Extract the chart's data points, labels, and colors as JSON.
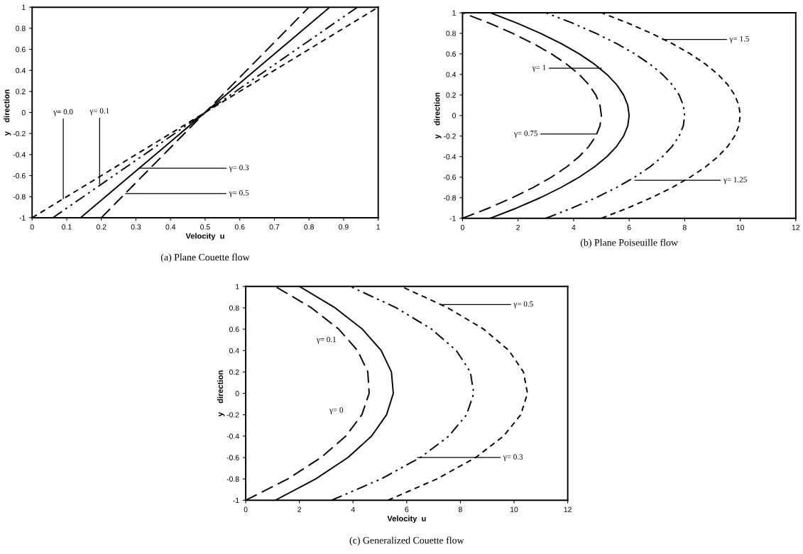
{
  "chart_data": [
    {
      "type": "line",
      "title": "(a) Plane Couette flow",
      "xlabel": "Velocity  u",
      "ylabel": "y    direction",
      "xlim": [
        0,
        1
      ],
      "ylim": [
        -1,
        1
      ],
      "xticks": [
        0,
        0.1,
        0.2,
        0.3,
        0.4,
        0.5,
        0.6,
        0.7,
        0.8,
        0.9,
        1
      ],
      "yticks": [
        -1,
        -0.8,
        -0.6,
        -0.4,
        -0.2,
        0,
        0.2,
        0.4,
        0.6,
        0.8,
        1
      ],
      "grid": false,
      "legend": false,
      "series": [
        {
          "color": "#000000",
          "line_style": "shortdashed",
          "x": [
            0,
            0.5,
            1
          ],
          "values": [
            -1,
            0,
            1
          ]
        },
        {
          "color": "#000000",
          "line_style": "dashdot",
          "x": [
            0.06,
            0.5,
            0.94
          ],
          "values": [
            -1,
            0,
            1
          ]
        },
        {
          "color": "#000000",
          "line_style": "solid",
          "x": [
            0.14,
            0.5,
            0.86
          ],
          "values": [
            -1,
            0,
            1
          ]
        },
        {
          "color": "#000000",
          "line_style": "dashed",
          "x": [
            0.2,
            0.5,
            0.8
          ],
          "values": [
            -1,
            0,
            1
          ]
        }
      ],
      "annotations": [
        {
          "text": "γ= 0.0",
          "x": 0.09,
          "y": -0.82
        },
        {
          "text": "γ= 0.1",
          "x": 0.195,
          "y": -0.68
        },
        {
          "text": "γ= 0.3",
          "x": 0.31,
          "y": -0.53
        },
        {
          "text": "γ= 0.5",
          "x": 0.27,
          "y": -0.77
        }
      ]
    },
    {
      "type": "line",
      "title": "(b) Plane Poiseuille flow",
      "ylabel": "y    direction",
      "xlim": [
        0,
        12
      ],
      "ylim": [
        -1,
        1
      ],
      "xticks": [
        0,
        2,
        4,
        6,
        8,
        10,
        12
      ],
      "yticks": [
        -1,
        -0.8,
        -0.6,
        -0.4,
        -0.2,
        0,
        0.2,
        0.4,
        0.6,
        0.8,
        1
      ],
      "grid": false,
      "legend": false,
      "series": [
        {
          "color": "#000000",
          "line_style": "dashed",
          "x": [
            0,
            0.95,
            1.8,
            2.55,
            3.2,
            3.75,
            4.2,
            4.55,
            4.8,
            4.95,
            5,
            4.95,
            4.8,
            4.55,
            4.2,
            3.75,
            3.2,
            2.55,
            1.8,
            0.95,
            0
          ],
          "values": [
            -1,
            -0.9,
            -0.8,
            -0.7,
            -0.6,
            -0.5,
            -0.4,
            -0.3,
            -0.2,
            -0.1,
            0,
            0.1,
            0.2,
            0.3,
            0.4,
            0.5,
            0.6,
            0.7,
            0.8,
            0.9,
            1
          ]
        },
        {
          "color": "#000000",
          "line_style": "solid",
          "x": [
            1,
            1.95,
            2.8,
            3.55,
            4.2,
            4.75,
            5.2,
            5.55,
            5.8,
            5.95,
            6,
            5.95,
            5.8,
            5.55,
            5.2,
            4.75,
            4.2,
            3.55,
            2.8,
            1.95,
            1
          ],
          "values": [
            -1,
            -0.9,
            -0.8,
            -0.7,
            -0.6,
            -0.5,
            -0.4,
            -0.3,
            -0.2,
            -0.1,
            0,
            0.1,
            0.2,
            0.3,
            0.4,
            0.5,
            0.6,
            0.7,
            0.8,
            0.9,
            1
          ]
        },
        {
          "color": "#000000",
          "line_style": "dashdot",
          "x": [
            3,
            3.95,
            4.8,
            5.55,
            6.2,
            6.75,
            7.2,
            7.55,
            7.8,
            7.95,
            8,
            7.95,
            7.8,
            7.55,
            7.2,
            6.75,
            6.2,
            5.55,
            4.8,
            3.95,
            3
          ],
          "values": [
            -1,
            -0.9,
            -0.8,
            -0.7,
            -0.6,
            -0.5,
            -0.4,
            -0.3,
            -0.2,
            -0.1,
            0,
            0.1,
            0.2,
            0.3,
            0.4,
            0.5,
            0.6,
            0.7,
            0.8,
            0.9,
            1
          ]
        },
        {
          "color": "#000000",
          "line_style": "shortdashed",
          "x": [
            5,
            5.95,
            6.8,
            7.55,
            8.2,
            8.75,
            9.2,
            9.55,
            9.8,
            9.95,
            10,
            9.95,
            9.8,
            9.55,
            9.2,
            8.75,
            8.2,
            7.55,
            6.8,
            5.95,
            5
          ],
          "values": [
            -1,
            -0.9,
            -0.8,
            -0.7,
            -0.6,
            -0.5,
            -0.4,
            -0.3,
            -0.2,
            -0.1,
            0,
            0.1,
            0.2,
            0.3,
            0.4,
            0.5,
            0.6,
            0.7,
            0.8,
            0.9,
            1
          ]
        }
      ],
      "annotations": [
        {
          "text": "γ= 1.5",
          "x": 7.2,
          "y": 0.74
        },
        {
          "text": "γ= 1",
          "x": 5.0,
          "y": 0.46
        },
        {
          "text": "γ= 0.75",
          "x": 4.84,
          "y": -0.18
        },
        {
          "text": "γ= 1.25",
          "x": 6.2,
          "y": -0.63
        }
      ]
    },
    {
      "type": "line",
      "title": "(c) Generalized Couette flow",
      "xlabel": "Velocity  u",
      "ylabel": "y    direction",
      "xlim": [
        0,
        12
      ],
      "ylim": [
        -1,
        1
      ],
      "xticks": [
        0,
        2,
        4,
        6,
        8,
        10,
        12
      ],
      "yticks": [
        -1,
        -0.8,
        -0.6,
        -0.4,
        -0.2,
        0,
        0.2,
        0.4,
        0.6,
        0.8,
        1
      ],
      "grid": false,
      "legend": false,
      "series": [
        {
          "color": "#000000",
          "line_style": "dashed",
          "x": [
            0,
            1.57,
            2.81,
            3.73,
            4.33,
            4.6,
            4.55,
            4.17,
            3.47,
            2.45,
            1.1
          ],
          "values": [
            -1,
            -0.8,
            -0.6,
            -0.4,
            -0.2,
            0,
            0.2,
            0.4,
            0.6,
            0.8,
            1
          ]
        },
        {
          "color": "#000000",
          "line_style": "solid",
          "x": [
            1.1,
            2.61,
            3.81,
            4.69,
            5.25,
            5.5,
            5.43,
            5.05,
            4.35,
            3.33,
            2.0
          ],
          "values": [
            -1,
            -0.8,
            -0.6,
            -0.4,
            -0.2,
            0,
            0.2,
            0.4,
            0.6,
            0.8,
            1
          ]
        },
        {
          "color": "#000000",
          "line_style": "dashdot",
          "x": [
            3.2,
            5.05,
            6.51,
            7.57,
            8.23,
            8.5,
            8.37,
            7.85,
            6.93,
            5.61,
            3.9
          ],
          "values": [
            -1,
            -0.8,
            -0.6,
            -0.4,
            -0.2,
            0,
            0.2,
            0.4,
            0.6,
            0.8,
            1
          ]
        },
        {
          "color": "#000000",
          "line_style": "shortdashed",
          "x": [
            5.3,
            7.13,
            8.57,
            9.61,
            10.25,
            10.5,
            10.35,
            9.81,
            8.87,
            7.53,
            5.8
          ],
          "values": [
            -1,
            -0.8,
            -0.6,
            -0.4,
            -0.2,
            0,
            0.2,
            0.4,
            0.6,
            0.8,
            1
          ]
        }
      ],
      "annotations": [
        {
          "text": "γ= 0.5",
          "x": 7.3,
          "y": 0.83
        },
        "γ= 0.1",
        "γ= 0",
        {
          "text": "γ= 0.3",
          "x": 6.4,
          "y": -0.6
        }
      ]
    }
  ]
}
